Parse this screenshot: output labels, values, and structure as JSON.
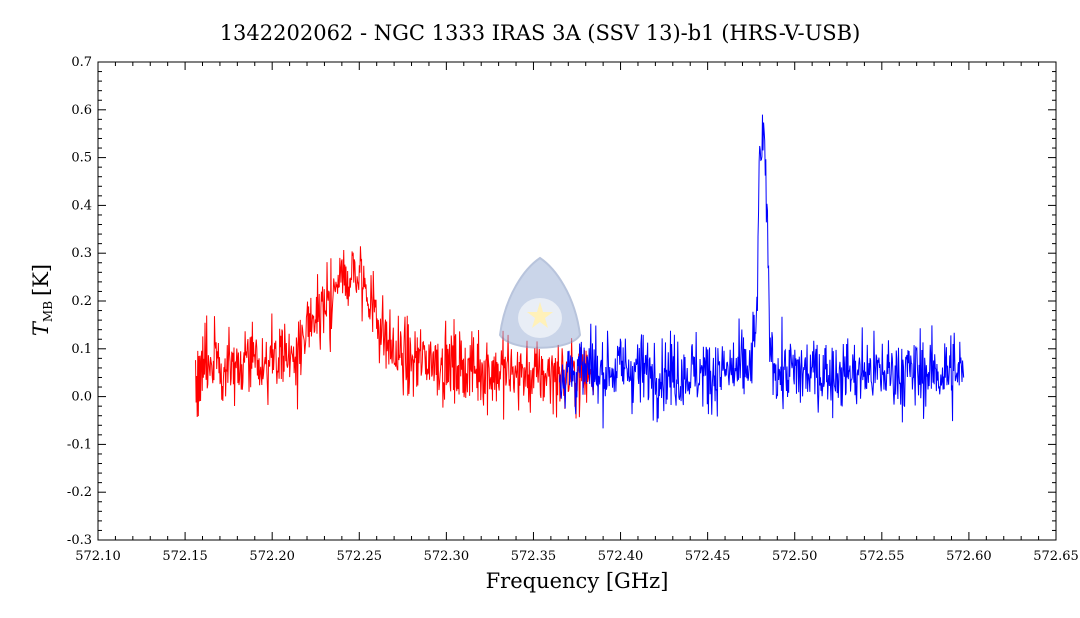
{
  "chart_data": {
    "type": "line",
    "title": "1342202062 - NGC 1333 IRAS 3A (SSV 13)-b1 (HRS-V-USB)",
    "xlabel": "Frequency [GHz]",
    "ylabel_symbol": "T",
    "ylabel_subscript": "MB",
    "ylabel_unit": "[K]",
    "xlim": [
      572.1,
      572.65
    ],
    "ylim": [
      -0.3,
      0.7
    ],
    "x_ticks": [
      "572.10",
      "572.15",
      "572.20",
      "572.25",
      "572.30",
      "572.35",
      "572.40",
      "572.45",
      "572.50",
      "572.55",
      "572.60",
      "572.65"
    ],
    "y_ticks": [
      "0.7",
      "0.6",
      "0.5",
      "0.4",
      "0.3",
      "0.2",
      "0.1",
      "0.0",
      "-0.1",
      "-0.2",
      "-0.3"
    ],
    "grid": false,
    "series": [
      {
        "color": "#ff0000",
        "x_range": [
          572.156,
          572.385
        ],
        "points": [
          [
            572.156,
            0.03
          ],
          [
            572.16,
            0.06
          ],
          [
            572.165,
            0.08
          ],
          [
            572.17,
            0.07
          ],
          [
            572.175,
            0.05
          ],
          [
            572.18,
            0.07
          ],
          [
            572.185,
            0.08
          ],
          [
            572.19,
            0.06
          ],
          [
            572.195,
            0.07
          ],
          [
            572.2,
            0.08
          ],
          [
            572.205,
            0.09
          ],
          [
            572.21,
            0.08
          ],
          [
            572.215,
            0.1
          ],
          [
            572.22,
            0.12
          ],
          [
            572.225,
            0.16
          ],
          [
            572.23,
            0.2
          ],
          [
            572.235,
            0.22
          ],
          [
            572.24,
            0.24
          ],
          [
            572.245,
            0.26
          ],
          [
            572.25,
            0.25
          ],
          [
            572.255,
            0.22
          ],
          [
            572.26,
            0.17
          ],
          [
            572.265,
            0.12
          ],
          [
            572.27,
            0.09
          ],
          [
            572.275,
            0.08
          ],
          [
            572.28,
            0.07
          ],
          [
            572.29,
            0.08
          ],
          [
            572.3,
            0.07
          ],
          [
            572.31,
            0.06
          ],
          [
            572.32,
            0.06
          ],
          [
            572.33,
            0.05
          ],
          [
            572.34,
            0.05
          ],
          [
            572.35,
            0.04
          ],
          [
            572.36,
            0.05
          ],
          [
            572.37,
            0.04
          ],
          [
            572.385,
            0.05
          ]
        ]
      },
      {
        "color": "#0000ff",
        "x_range": [
          572.365,
          572.597
        ],
        "points": [
          [
            572.365,
            0.05
          ],
          [
            572.38,
            0.05
          ],
          [
            572.4,
            0.06
          ],
          [
            572.42,
            0.05
          ],
          [
            572.44,
            0.05
          ],
          [
            572.46,
            0.05
          ],
          [
            572.475,
            0.06
          ],
          [
            572.478,
            0.15
          ],
          [
            572.48,
            0.5
          ],
          [
            572.482,
            0.55
          ],
          [
            572.484,
            0.38
          ],
          [
            572.486,
            0.1
          ],
          [
            572.49,
            0.05
          ],
          [
            572.5,
            0.05
          ],
          [
            572.52,
            0.05
          ],
          [
            572.54,
            0.05
          ],
          [
            572.56,
            0.05
          ],
          [
            572.58,
            0.05
          ],
          [
            572.597,
            0.05
          ]
        ]
      }
    ]
  }
}
